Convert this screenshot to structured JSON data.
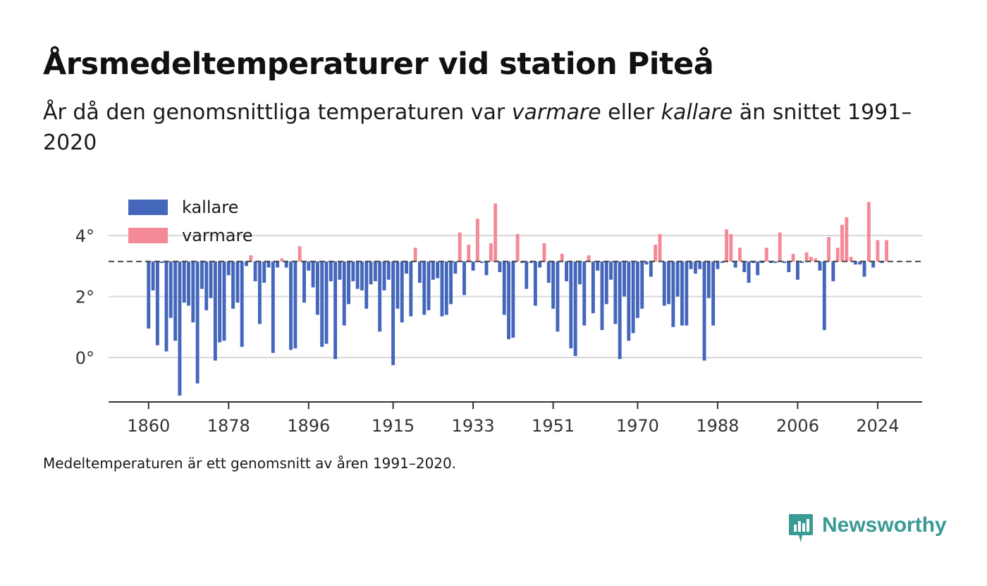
{
  "title": "Årsmedeltemperaturer vid station Piteå",
  "subtitle": {
    "before": "År då den genomsnittliga temperaturen var ",
    "warm_word": "varmare",
    "middle": " eller ",
    "cold_word": "kallare",
    "after": " än snittet 1991–2020"
  },
  "footnote": "Medeltemperaturen är ett genomsnitt av åren 1991–2020.",
  "brand": {
    "name": "Newsworthy",
    "color": "#3a9a95"
  },
  "chart_data": {
    "type": "bar",
    "baseline": 3.15,
    "baseline_style": "dashed",
    "ylim": [
      -1.4,
      5.2
    ],
    "y_ticks": [
      0,
      2,
      4
    ],
    "y_tick_labels": [
      "0°",
      "2°",
      "4°"
    ],
    "x_ticks": [
      1860,
      1878,
      1896,
      1915,
      1933,
      1951,
      1970,
      1988,
      2006,
      2024
    ],
    "xlim": [
      1851,
      2034
    ],
    "grid": true,
    "legend_position": "top-left",
    "colors": {
      "kallare": "#4466bb",
      "varmare": "#f58a97"
    },
    "series": [
      {
        "name": "kallare",
        "label": "kallare"
      },
      {
        "name": "varmare",
        "label": "varmare"
      }
    ],
    "start_year": 1860,
    "values": [
      0.95,
      2.2,
      0.4,
      3.1,
      0.2,
      1.3,
      0.55,
      -1.25,
      1.8,
      1.7,
      1.15,
      -0.85,
      2.25,
      1.55,
      1.95,
      -0.1,
      0.5,
      0.55,
      2.7,
      1.6,
      1.8,
      0.35,
      3.0,
      3.35,
      2.5,
      1.1,
      2.45,
      2.95,
      0.15,
      2.95,
      3.25,
      2.95,
      0.25,
      0.3,
      3.65,
      1.8,
      2.85,
      2.3,
      1.4,
      0.35,
      0.45,
      2.5,
      -0.05,
      2.55,
      1.05,
      1.75,
      2.5,
      2.25,
      2.2,
      1.6,
      2.4,
      2.5,
      0.85,
      2.2,
      2.55,
      -0.25,
      1.6,
      1.15,
      2.75,
      1.35,
      3.6,
      2.45,
      1.4,
      1.55,
      2.55,
      2.6,
      1.35,
      1.4,
      1.75,
      2.75,
      4.1,
      2.05,
      3.7,
      2.85,
      4.55,
      3.1,
      2.7,
      3.75,
      5.05,
      2.8,
      1.4,
      0.6,
      0.65,
      4.05,
      3.1,
      2.25,
      3.1,
      1.7,
      2.95,
      3.75,
      2.45,
      1.6,
      0.85,
      3.4,
      2.5,
      0.3,
      0.05,
      2.4,
      1.05,
      3.35,
      1.45,
      2.85,
      0.9,
      1.75,
      2.55,
      1.1,
      -0.05,
      2.0,
      0.55,
      0.8,
      1.3,
      1.6,
      3.05,
      2.65,
      3.7,
      4.05,
      1.7,
      1.75,
      1.0,
      2.0,
      1.05,
      1.05,
      2.9,
      2.75,
      2.9,
      -0.1,
      1.95,
      1.05,
      2.9,
      3.1,
      4.2,
      4.05,
      2.95,
      3.6,
      2.8,
      2.45,
      3.1,
      2.7,
      3.1,
      3.6,
      3.1,
      3.1,
      4.1,
      3.1,
      2.8,
      3.4,
      2.55,
      3.1,
      3.45,
      3.3,
      3.25,
      2.85,
      0.9,
      3.95,
      2.5,
      3.6,
      4.35,
      4.6,
      3.3,
      3.05,
      3.05,
      2.65,
      5.1,
      2.95,
      3.85,
      3.1,
      3.85
    ]
  }
}
